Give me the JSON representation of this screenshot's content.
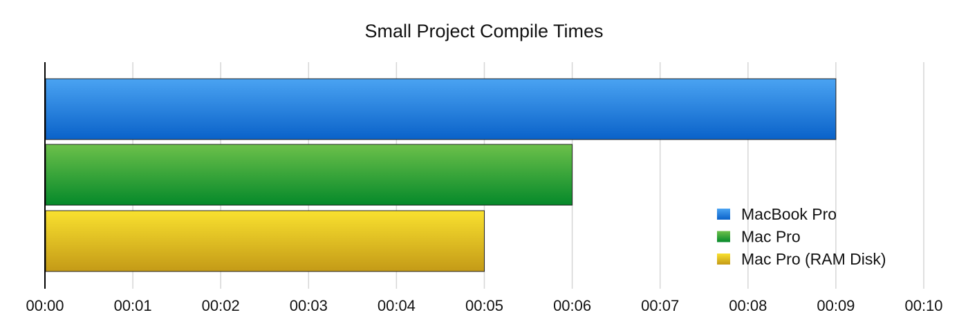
{
  "chart_data": {
    "type": "bar",
    "orientation": "horizontal",
    "title": "Small Project Compile Times",
    "xlabel": "",
    "ylabel": "",
    "xlim": [
      0,
      10
    ],
    "grid": true,
    "legend_position": "bottom-right",
    "tick_labels": [
      "00:00",
      "00:01",
      "00:02",
      "00:03",
      "00:04",
      "00:05",
      "00:06",
      "00:07",
      "00:08",
      "00:09",
      "00:10"
    ],
    "series": [
      {
        "name": "MacBook Pro",
        "value": 9,
        "color_top": "#4aa3f2",
        "color_bottom": "#0a62c9"
      },
      {
        "name": "Mac Pro",
        "value": 6,
        "color_top": "#6cc04a",
        "color_bottom": "#05892a"
      },
      {
        "name": "Mac Pro (RAM Disk)",
        "value": 5,
        "color_top": "#f9e12f",
        "color_bottom": "#c49a17"
      }
    ]
  }
}
